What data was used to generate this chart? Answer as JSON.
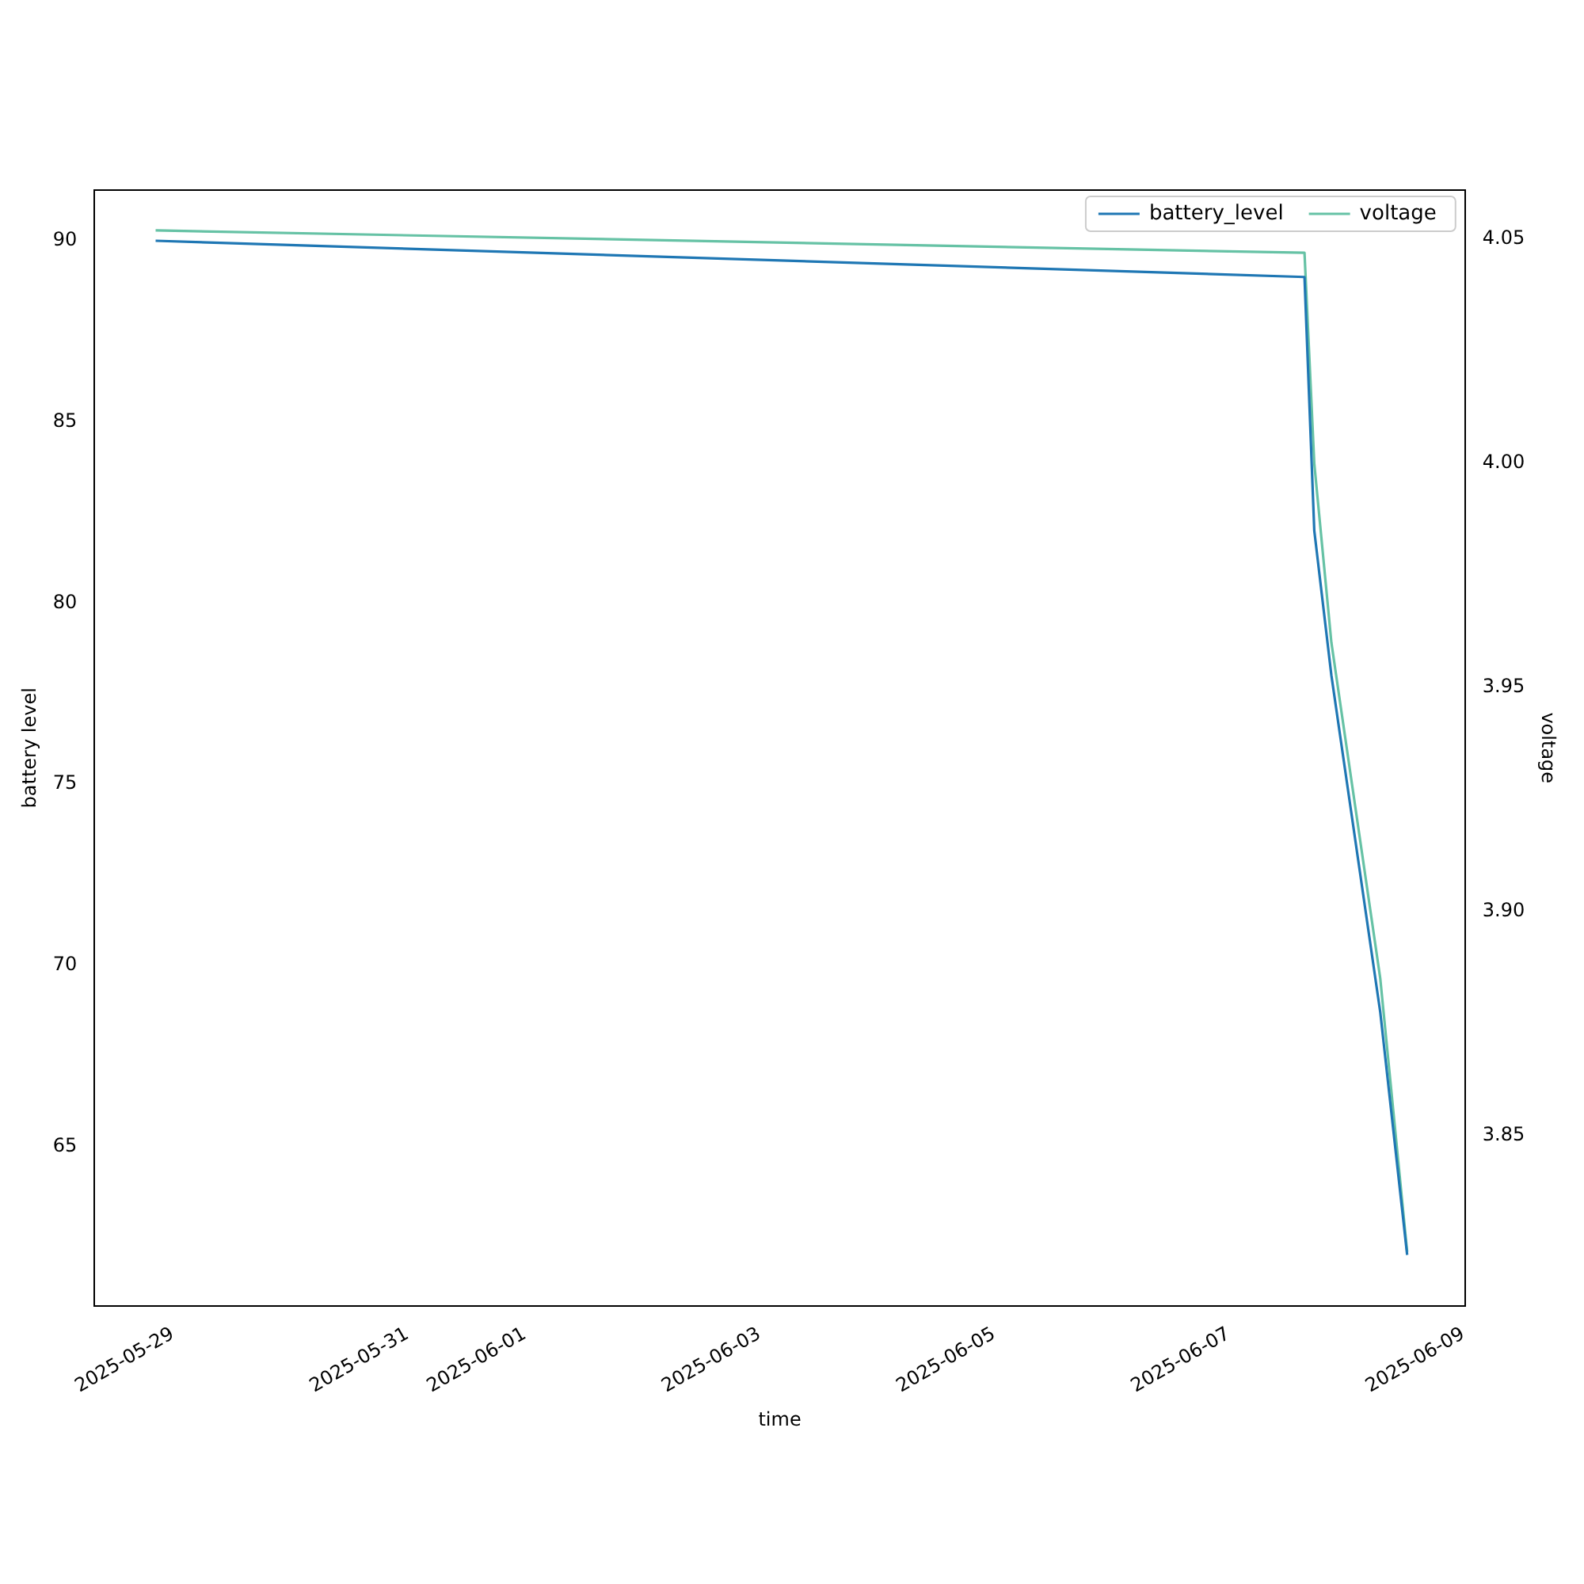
{
  "chart_data": {
    "type": "line",
    "xlabel": "time",
    "ylabel": "battery level",
    "y2label": "voltage",
    "xlim": [
      "2025-05-28T08:00",
      "2025-06-09T00:20"
    ],
    "xticks": [
      "2025-05-29",
      "2025-05-31",
      "2025-06-01",
      "2025-06-03",
      "2025-06-05",
      "2025-06-07",
      "2025-06-09"
    ],
    "ylim": [
      60.6,
      91.4
    ],
    "yticks": [
      65,
      70,
      75,
      80,
      85,
      90
    ],
    "y2lim": [
      3.812,
      4.061
    ],
    "y2ticks": [
      3.85,
      {
        "value": 3.9,
        "label": "3.90"
      },
      3.95,
      {
        "value": 4.0,
        "label": "4.00"
      },
      4.05
    ],
    "legend": "top right",
    "grid": false,
    "series": [
      {
        "name": "battery_level",
        "color": "#1f77b4",
        "x": [
          "2025-05-28T20:30",
          "2025-06-07T15:30",
          "2025-06-07T17:30",
          "2025-06-07T21:00",
          "2025-06-08T07:00",
          "2025-06-08T12:30"
        ],
        "values": [
          90,
          89,
          82,
          78,
          68.7,
          62
        ]
      },
      {
        "name": "voltage",
        "color": "#66c2a5",
        "axis": "y2",
        "x": [
          "2025-05-28T20:30",
          "2025-06-07T15:30",
          "2025-06-07T17:30",
          "2025-06-07T21:00",
          "2025-06-08T07:00",
          "2025-06-08T12:30"
        ],
        "values": [
          4.052,
          4.047,
          4.0,
          3.96,
          3.885,
          3.824
        ]
      }
    ]
  }
}
